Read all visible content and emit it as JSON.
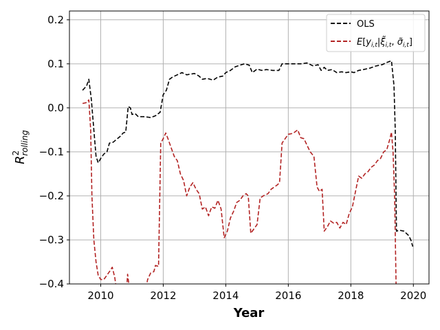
{
  "chart_data": {
    "type": "line",
    "title": "",
    "xlabel": "Year",
    "ylabel": "R²_rolling",
    "xlim": [
      2009.0,
      2020.5
    ],
    "ylim": [
      -0.4,
      0.22
    ],
    "x_ticks": [
      2010,
      2012,
      2014,
      2016,
      2018,
      2020
    ],
    "y_ticks": [
      -0.4,
      -0.3,
      -0.2,
      -0.1,
      0.0,
      0.1,
      0.2
    ],
    "x_tick_labels": [
      "2010",
      "2012",
      "2014",
      "2016",
      "2018",
      "2020"
    ],
    "y_tick_labels": [
      "−0.4",
      "−0.3",
      "−0.2",
      "−0.1",
      "0.0",
      "0.1",
      "0.2"
    ],
    "grid": true,
    "legend_position": "top-right",
    "series": [
      {
        "name": "OLS",
        "color": "#000000",
        "style": "dashed",
        "points": [
          [
            2009.42,
            0.04
          ],
          [
            2009.55,
            0.05
          ],
          [
            2009.62,
            0.065
          ],
          [
            2009.7,
            0.02
          ],
          [
            2009.78,
            -0.05
          ],
          [
            2009.85,
            -0.11
          ],
          [
            2009.92,
            -0.125
          ],
          [
            2010.0,
            -0.115
          ],
          [
            2010.1,
            -0.105
          ],
          [
            2010.2,
            -0.1
          ],
          [
            2010.28,
            -0.08
          ],
          [
            2010.4,
            -0.078
          ],
          [
            2010.5,
            -0.072
          ],
          [
            2010.62,
            -0.065
          ],
          [
            2010.72,
            -0.057
          ],
          [
            2010.8,
            -0.055
          ],
          [
            2010.88,
            0.003
          ],
          [
            2010.95,
            0.0
          ],
          [
            2011.0,
            -0.015
          ],
          [
            2011.1,
            -0.013
          ],
          [
            2011.2,
            -0.02
          ],
          [
            2011.4,
            -0.02
          ],
          [
            2011.6,
            -0.022
          ],
          [
            2011.75,
            -0.018
          ],
          [
            2011.9,
            -0.01
          ],
          [
            2012.0,
            0.03
          ],
          [
            2012.1,
            0.04
          ],
          [
            2012.2,
            0.065
          ],
          [
            2012.3,
            0.07
          ],
          [
            2012.45,
            0.075
          ],
          [
            2012.6,
            0.08
          ],
          [
            2012.75,
            0.075
          ],
          [
            2012.9,
            0.077
          ],
          [
            2013.0,
            0.078
          ],
          [
            2013.15,
            0.072
          ],
          [
            2013.25,
            0.065
          ],
          [
            2013.4,
            0.067
          ],
          [
            2013.6,
            0.063
          ],
          [
            2013.75,
            0.07
          ],
          [
            2013.9,
            0.072
          ],
          [
            2014.0,
            0.08
          ],
          [
            2014.15,
            0.085
          ],
          [
            2014.3,
            0.093
          ],
          [
            2014.45,
            0.097
          ],
          [
            2014.6,
            0.1
          ],
          [
            2014.75,
            0.097
          ],
          [
            2014.85,
            0.08
          ],
          [
            2015.0,
            0.088
          ],
          [
            2015.15,
            0.085
          ],
          [
            2015.3,
            0.087
          ],
          [
            2015.5,
            0.085
          ],
          [
            2015.7,
            0.085
          ],
          [
            2015.8,
            0.1
          ],
          [
            2016.0,
            0.1
          ],
          [
            2016.2,
            0.1
          ],
          [
            2016.4,
            0.1
          ],
          [
            2016.6,
            0.102
          ],
          [
            2016.8,
            0.095
          ],
          [
            2016.95,
            0.098
          ],
          [
            2017.05,
            0.085
          ],
          [
            2017.15,
            0.092
          ],
          [
            2017.25,
            0.085
          ],
          [
            2017.4,
            0.087
          ],
          [
            2017.55,
            0.08
          ],
          [
            2017.7,
            0.082
          ],
          [
            2017.85,
            0.08
          ],
          [
            2018.0,
            0.082
          ],
          [
            2018.1,
            0.08
          ],
          [
            2018.25,
            0.085
          ],
          [
            2018.4,
            0.087
          ],
          [
            2018.6,
            0.09
          ],
          [
            2018.8,
            0.095
          ],
          [
            2019.0,
            0.098
          ],
          [
            2019.15,
            0.103
          ],
          [
            2019.3,
            0.107
          ],
          [
            2019.38,
            0.05
          ],
          [
            2019.42,
            -0.05
          ],
          [
            2019.46,
            -0.28
          ],
          [
            2019.55,
            -0.278
          ],
          [
            2019.7,
            -0.28
          ],
          [
            2019.85,
            -0.29
          ],
          [
            2019.92,
            -0.3
          ],
          [
            2019.98,
            -0.315
          ]
        ]
      },
      {
        "name": "E[y_{i,t} | ξ̃_{i,t}, σ̃_{i,t}]",
        "color": "#b22222",
        "style": "dashed",
        "points": [
          [
            2009.42,
            0.01
          ],
          [
            2009.55,
            0.012
          ],
          [
            2009.62,
            0.018
          ],
          [
            2009.68,
            -0.05
          ],
          [
            2009.72,
            -0.2
          ],
          [
            2009.78,
            -0.3
          ],
          [
            2009.85,
            -0.35
          ],
          [
            2009.92,
            -0.38
          ],
          [
            2010.0,
            -0.39
          ],
          [
            2010.1,
            -0.39
          ],
          [
            2010.2,
            -0.38
          ],
          [
            2010.3,
            -0.37
          ],
          [
            2010.37,
            -0.362
          ],
          [
            2010.45,
            -0.385
          ],
          [
            2010.5,
            -0.41
          ],
          null,
          [
            2010.83,
            -0.41
          ],
          [
            2010.86,
            -0.378
          ],
          [
            2010.9,
            -0.4
          ],
          [
            2010.95,
            -0.41
          ],
          null,
          [
            2011.45,
            -0.41
          ],
          [
            2011.5,
            -0.39
          ],
          [
            2011.6,
            -0.375
          ],
          [
            2011.7,
            -0.372
          ],
          [
            2011.75,
            -0.358
          ],
          [
            2011.85,
            -0.36
          ],
          [
            2011.92,
            -0.08
          ],
          [
            2012.0,
            -0.07
          ],
          [
            2012.08,
            -0.057
          ],
          [
            2012.15,
            -0.07
          ],
          [
            2012.25,
            -0.09
          ],
          [
            2012.35,
            -0.11
          ],
          [
            2012.45,
            -0.12
          ],
          [
            2012.55,
            -0.15
          ],
          [
            2012.65,
            -0.165
          ],
          [
            2012.75,
            -0.2
          ],
          [
            2012.85,
            -0.18
          ],
          [
            2012.95,
            -0.17
          ],
          [
            2013.05,
            -0.185
          ],
          [
            2013.15,
            -0.195
          ],
          [
            2013.25,
            -0.23
          ],
          [
            2013.35,
            -0.225
          ],
          [
            2013.45,
            -0.245
          ],
          [
            2013.55,
            -0.225
          ],
          [
            2013.65,
            -0.228
          ],
          [
            2013.75,
            -0.21
          ],
          [
            2013.85,
            -0.23
          ],
          [
            2013.95,
            -0.295
          ],
          [
            2014.05,
            -0.28
          ],
          [
            2014.15,
            -0.25
          ],
          [
            2014.25,
            -0.235
          ],
          [
            2014.35,
            -0.215
          ],
          [
            2014.45,
            -0.21
          ],
          [
            2014.55,
            -0.2
          ],
          [
            2014.65,
            -0.195
          ],
          [
            2014.72,
            -0.2
          ],
          [
            2014.8,
            -0.285
          ],
          [
            2014.9,
            -0.275
          ],
          [
            2015.0,
            -0.265
          ],
          [
            2015.1,
            -0.205
          ],
          [
            2015.2,
            -0.2
          ],
          [
            2015.35,
            -0.195
          ],
          [
            2015.45,
            -0.185
          ],
          [
            2015.55,
            -0.18
          ],
          [
            2015.65,
            -0.175
          ],
          [
            2015.72,
            -0.17
          ],
          [
            2015.8,
            -0.08
          ],
          [
            2015.9,
            -0.07
          ],
          [
            2016.0,
            -0.06
          ],
          [
            2016.15,
            -0.058
          ],
          [
            2016.3,
            -0.05
          ],
          [
            2016.4,
            -0.068
          ],
          [
            2016.5,
            -0.07
          ],
          [
            2016.6,
            -0.085
          ],
          [
            2016.7,
            -0.1
          ],
          [
            2016.82,
            -0.11
          ],
          [
            2016.92,
            -0.18
          ],
          [
            2017.0,
            -0.19
          ],
          [
            2017.08,
            -0.185
          ],
          [
            2017.15,
            -0.28
          ],
          [
            2017.25,
            -0.27
          ],
          [
            2017.35,
            -0.257
          ],
          [
            2017.45,
            -0.262
          ],
          [
            2017.55,
            -0.26
          ],
          [
            2017.65,
            -0.273
          ],
          [
            2017.75,
            -0.26
          ],
          [
            2017.85,
            -0.265
          ],
          [
            2017.95,
            -0.24
          ],
          [
            2018.05,
            -0.225
          ],
          [
            2018.15,
            -0.19
          ],
          [
            2018.25,
            -0.155
          ],
          [
            2018.35,
            -0.16
          ],
          [
            2018.45,
            -0.15
          ],
          [
            2018.55,
            -0.145
          ],
          [
            2018.65,
            -0.135
          ],
          [
            2018.75,
            -0.13
          ],
          [
            2018.85,
            -0.12
          ],
          [
            2018.95,
            -0.115
          ],
          [
            2019.05,
            -0.1
          ],
          [
            2019.15,
            -0.095
          ],
          [
            2019.25,
            -0.07
          ],
          [
            2019.3,
            -0.055
          ],
          [
            2019.35,
            -0.1
          ],
          [
            2019.4,
            -0.2
          ],
          [
            2019.45,
            -0.41
          ]
        ]
      }
    ]
  }
}
